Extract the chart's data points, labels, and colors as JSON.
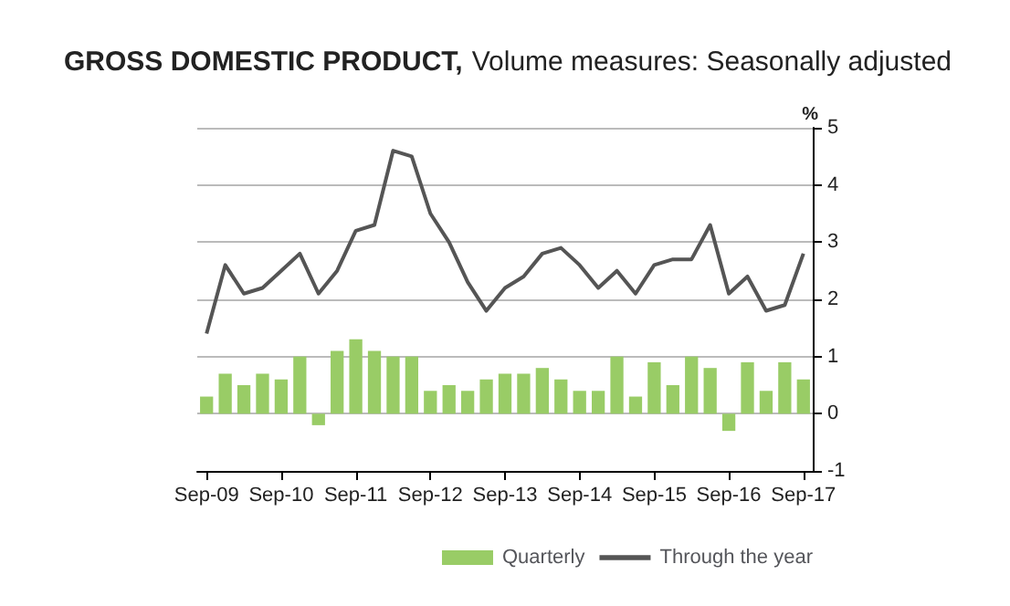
{
  "chart_data": {
    "type": "bar",
    "title": "GROSS DOMESTIC PRODUCT,",
    "subtitle": "Volume measures: Seasonally adjusted",
    "ylabel": "%",
    "categories": [
      "Sep-09",
      null,
      null,
      null,
      "Sep-10",
      null,
      null,
      null,
      "Sep-11",
      null,
      null,
      null,
      "Sep-12",
      null,
      null,
      null,
      "Sep-13",
      null,
      null,
      null,
      "Sep-14",
      null,
      null,
      null,
      "Sep-15",
      null,
      null,
      null,
      "Sep-16",
      null,
      null,
      null,
      "Sep-17"
    ],
    "series": [
      {
        "name": "Quarterly",
        "color": "#99cc66",
        "values": [
          0.3,
          0.7,
          0.5,
          0.7,
          0.6,
          1.0,
          -0.2,
          1.1,
          1.3,
          1.1,
          1.0,
          1.0,
          0.4,
          0.5,
          0.4,
          0.6,
          0.7,
          0.7,
          0.8,
          0.6,
          0.4,
          0.4,
          1.0,
          0.3,
          0.9,
          0.5,
          1.0,
          0.8,
          -0.3,
          0.9,
          0.4,
          0.9,
          0.6
        ]
      },
      {
        "name": "Through the year",
        "type": "line",
        "color": "#555555",
        "values": [
          1.4,
          2.6,
          2.1,
          2.2,
          2.5,
          2.8,
          2.1,
          2.5,
          3.2,
          3.3,
          4.6,
          4.5,
          3.5,
          3.0,
          2.3,
          1.8,
          2.2,
          2.4,
          2.8,
          2.9,
          2.6,
          2.2,
          2.5,
          2.1,
          2.6,
          2.7,
          2.7,
          3.3,
          2.1,
          2.4,
          1.8,
          1.9,
          2.8
        ]
      }
    ],
    "ylim": [
      -1,
      5
    ],
    "yticks": [
      -1,
      0,
      1,
      2,
      3,
      4,
      5
    ],
    "grid": "y",
    "legend": "bottom right",
    "marker": "none"
  }
}
